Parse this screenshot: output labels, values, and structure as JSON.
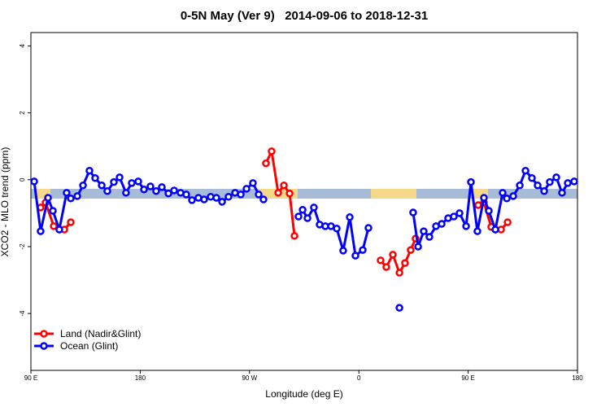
{
  "chart_data": {
    "type": "line",
    "title": "0-5N May (Ver 9)   2014-09-06 to 2018-12-31",
    "x_label": "Longitude (deg E)",
    "y_label": "XCO2 - MLO trend (ppm)",
    "xlim": [
      90,
      540
    ],
    "ylim": [
      -5.7,
      4.4
    ],
    "xticks": [
      {
        "value": 90,
        "label": "90 E"
      },
      180,
      {
        "value": 270,
        "label": "90 W"
      },
      {
        "value": 360,
        "label": "0"
      },
      {
        "value": 450,
        "label": "90 E"
      },
      {
        "value": 540,
        "label": "180"
      }
    ],
    "yticks": [
      -4,
      -2,
      0,
      2,
      4
    ],
    "legend": "bottom-left",
    "series": [
      {
        "name": "Land (Nadir&Glint)",
        "color": "#ff0000",
        "x": [
          98.0,
          102.1,
          108.8,
          117.5,
          122.8,
          null,
          283.5,
          288.2,
          293.6,
          298.3,
          303.0,
          307.0,
          null,
          377.9,
          382.6,
          388.0,
          393.4,
          398.0,
          402.7,
          406.7,
          null,
          458.3,
          463.0,
          469.0,
          477.1,
          482.5
        ],
        "values": [
          -0.83,
          -0.68,
          -1.39,
          -1.49,
          -1.27,
          null,
          0.49,
          0.85,
          -0.39,
          -0.17,
          -0.41,
          -1.68,
          null,
          -2.41,
          -2.61,
          -2.24,
          -2.78,
          -2.49,
          -2.1,
          -1.76,
          null,
          -0.76,
          -0.68,
          -1.41,
          -1.49,
          -1.27
        ]
      },
      {
        "name": "Ocean (Glint)",
        "color": "#0000ff",
        "x": [
          92.7,
          98.0,
          104.1,
          108.1,
          113.4,
          119.4,
          122.8,
          128.2,
          132.9,
          138.2,
          142.9,
          148.3,
          152.9,
          158.3,
          163.0,
          168.3,
          173.0,
          178.4,
          183.1,
          188.4,
          193.1,
          197.8,
          203.2,
          207.9,
          213.2,
          217.9,
          222.6,
          227.9,
          232.6,
          238.0,
          242.7,
          247.4,
          252.7,
          258.1,
          262.8,
          267.5,
          272.8,
          277.5,
          281.5,
          null,
          310.3,
          313.7,
          317.7,
          323.0,
          327.7,
          332.4,
          337.1,
          341.8,
          347.1,
          352.5,
          357.2,
          363.2,
          367.9,
          null,
          393.4,
          null,
          404.7,
          408.8,
          413.4,
          418.1,
          423.5,
          428.2,
          433.5,
          438.2,
          442.9,
          448.3,
          452.3,
          457.6,
          463.0,
          467.0,
          472.4,
          478.4,
          481.8,
          487.1,
          492.5,
          497.2,
          502.5,
          507.2,
          512.6,
          517.2,
          522.6,
          527.3,
          532.0,
          537.3
        ],
        "values": [
          -0.05,
          -1.54,
          -0.54,
          -0.93,
          -1.49,
          -0.39,
          -0.56,
          -0.49,
          -0.17,
          0.27,
          0.05,
          -0.17,
          -0.34,
          -0.07,
          0.07,
          -0.39,
          -0.1,
          -0.05,
          -0.29,
          -0.2,
          -0.34,
          -0.22,
          -0.41,
          -0.32,
          -0.39,
          -0.44,
          -0.61,
          -0.54,
          -0.59,
          -0.51,
          -0.54,
          -0.66,
          -0.51,
          -0.39,
          -0.44,
          -0.27,
          -0.1,
          -0.44,
          -0.59,
          null,
          -1.1,
          -0.9,
          -1.15,
          -0.83,
          -1.34,
          -1.39,
          -1.39,
          -1.46,
          -2.12,
          -1.12,
          -2.27,
          -2.1,
          -1.44,
          null,
          -3.83,
          null,
          -0.98,
          -2.0,
          -1.54,
          -1.71,
          -1.39,
          -1.32,
          -1.15,
          -1.1,
          -1.0,
          -1.39,
          -0.07,
          -1.54,
          -0.54,
          -0.93,
          -1.49,
          -0.39,
          -0.56,
          -0.49,
          -0.17,
          0.27,
          0.05,
          -0.17,
          -0.34,
          -0.07,
          0.07,
          -0.39,
          -0.1,
          -0.05
        ]
      }
    ]
  }
}
